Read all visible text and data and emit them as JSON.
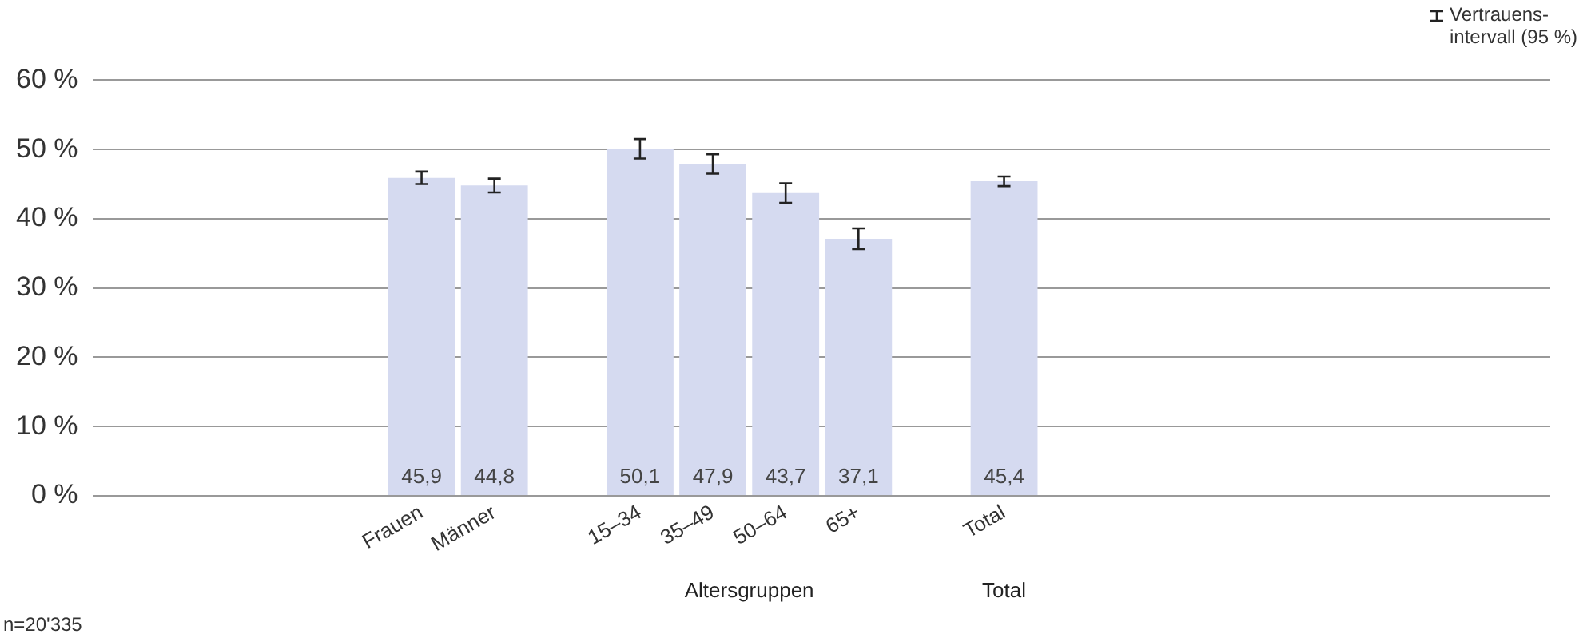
{
  "chart_data": {
    "type": "bar",
    "categories": [
      null,
      null,
      null,
      null,
      "Frauen",
      "Männer",
      null,
      "15–34",
      "35–49",
      "50–64",
      "65+",
      null,
      "Total",
      null,
      null,
      null,
      null,
      null,
      null,
      null
    ],
    "values": [
      null,
      null,
      null,
      null,
      45.9,
      44.8,
      null,
      50.1,
      47.9,
      43.7,
      37.1,
      null,
      45.4,
      null,
      null,
      null,
      null,
      null,
      null,
      null
    ],
    "errors": [
      null,
      null,
      null,
      null,
      0.9,
      1.0,
      null,
      1.4,
      1.4,
      1.4,
      1.5,
      null,
      0.7,
      null,
      null,
      null,
      null,
      null,
      null,
      null
    ],
    "value_labels": [
      null,
      null,
      null,
      null,
      "45,9",
      "44,8",
      null,
      "50,1",
      "47,9",
      "43,7",
      "37,1",
      null,
      "45,4",
      null,
      null,
      null,
      null,
      null,
      null,
      null
    ],
    "color": "#d5daf0",
    "ylim": [
      0,
      60
    ],
    "yticks": [
      {
        "value": 0,
        "label": "0 %"
      },
      {
        "value": 10,
        "label": "10 %"
      },
      {
        "value": 20,
        "label": "20 %"
      },
      {
        "value": 30,
        "label": "30 %"
      },
      {
        "value": 40,
        "label": "40 %"
      },
      {
        "value": 50,
        "label": "50 %"
      },
      {
        "value": 60,
        "label": "60 %"
      }
    ],
    "grid": "y",
    "annotations": [
      "Altersgruppen",
      "Total",
      "n=20'335",
      "Vertrauens-intervall (95 %)"
    ]
  }
}
